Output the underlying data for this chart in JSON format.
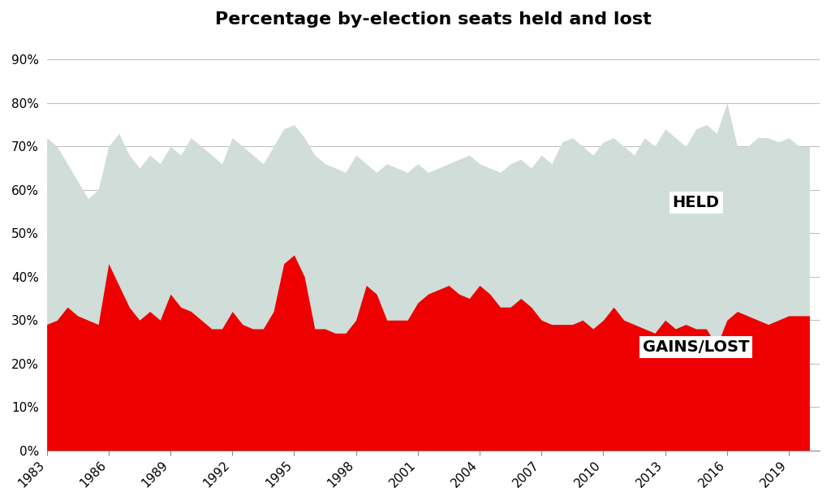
{
  "title": "Percentage by-election seats held and lost",
  "title_fontsize": 16,
  "background_color": "#ffffff",
  "plot_bg_color": "#ffffff",
  "grid_color": "#c0c0c0",
  "held_color": "#d0ddd8",
  "lost_color": "#ee0000",
  "held_label": "HELD",
  "lost_label": "GAINS/LOST",
  "ylabel_ticks": [
    "0%",
    "10%",
    "20%",
    "30%",
    "40%",
    "50%",
    "60%",
    "70%",
    "80%",
    "90%"
  ],
  "yticks": [
    0,
    10,
    20,
    30,
    40,
    50,
    60,
    70,
    80,
    90
  ],
  "ylim": [
    0,
    95
  ],
  "xlim": [
    1983,
    2020.5
  ],
  "xtick_labels": [
    "1983",
    "1986",
    "1989",
    "1992",
    "1995",
    "1998",
    "2001",
    "2004",
    "2007",
    "2010",
    "2013",
    "2016",
    "2019"
  ],
  "xtick_values": [
    1983,
    1986,
    1989,
    1992,
    1995,
    1998,
    2001,
    2004,
    2007,
    2010,
    2013,
    2016,
    2019
  ],
  "years": [
    1983,
    1983.5,
    1984,
    1984.5,
    1985,
    1985.5,
    1986,
    1986.5,
    1987,
    1987.5,
    1988,
    1988.5,
    1989,
    1989.5,
    1990,
    1990.5,
    1991,
    1991.5,
    1992,
    1992.5,
    1993,
    1993.5,
    1994,
    1994.5,
    1995,
    1995.5,
    1996,
    1996.5,
    1997,
    1997.5,
    1998,
    1998.5,
    1999,
    1999.5,
    2000,
    2000.5,
    2001,
    2001.5,
    2002,
    2002.5,
    2003,
    2003.5,
    2004,
    2004.5,
    2005,
    2005.5,
    2006,
    2006.5,
    2007,
    2007.5,
    2008,
    2008.5,
    2009,
    2009.5,
    2010,
    2010.5,
    2011,
    2011.5,
    2012,
    2012.5,
    2013,
    2013.5,
    2014,
    2014.5,
    2015,
    2015.5,
    2016,
    2016.5,
    2017,
    2017.5,
    2018,
    2018.5,
    2019,
    2019.5,
    2020
  ],
  "held_values": [
    72,
    70,
    66,
    62,
    58,
    60,
    70,
    73,
    68,
    65,
    68,
    66,
    70,
    68,
    72,
    70,
    68,
    66,
    72,
    70,
    68,
    66,
    70,
    74,
    75,
    72,
    68,
    66,
    65,
    64,
    68,
    66,
    64,
    66,
    65,
    64,
    66,
    64,
    65,
    66,
    67,
    68,
    66,
    65,
    64,
    66,
    67,
    65,
    68,
    66,
    71,
    72,
    70,
    68,
    71,
    72,
    70,
    68,
    72,
    70,
    74,
    72,
    70,
    74,
    75,
    73,
    80,
    70,
    70,
    72,
    72,
    71,
    72,
    70,
    70
  ],
  "lost_values": [
    29,
    30,
    33,
    31,
    30,
    29,
    43,
    38,
    33,
    30,
    32,
    30,
    36,
    33,
    32,
    30,
    28,
    28,
    32,
    29,
    28,
    28,
    32,
    43,
    45,
    40,
    28,
    28,
    27,
    27,
    30,
    38,
    36,
    30,
    30,
    30,
    34,
    36,
    37,
    38,
    36,
    35,
    38,
    36,
    33,
    33,
    35,
    33,
    30,
    29,
    29,
    29,
    30,
    28,
    30,
    33,
    30,
    29,
    28,
    27,
    30,
    28,
    29,
    28,
    28,
    24,
    30,
    32,
    31,
    30,
    29,
    30,
    31,
    31,
    31
  ]
}
